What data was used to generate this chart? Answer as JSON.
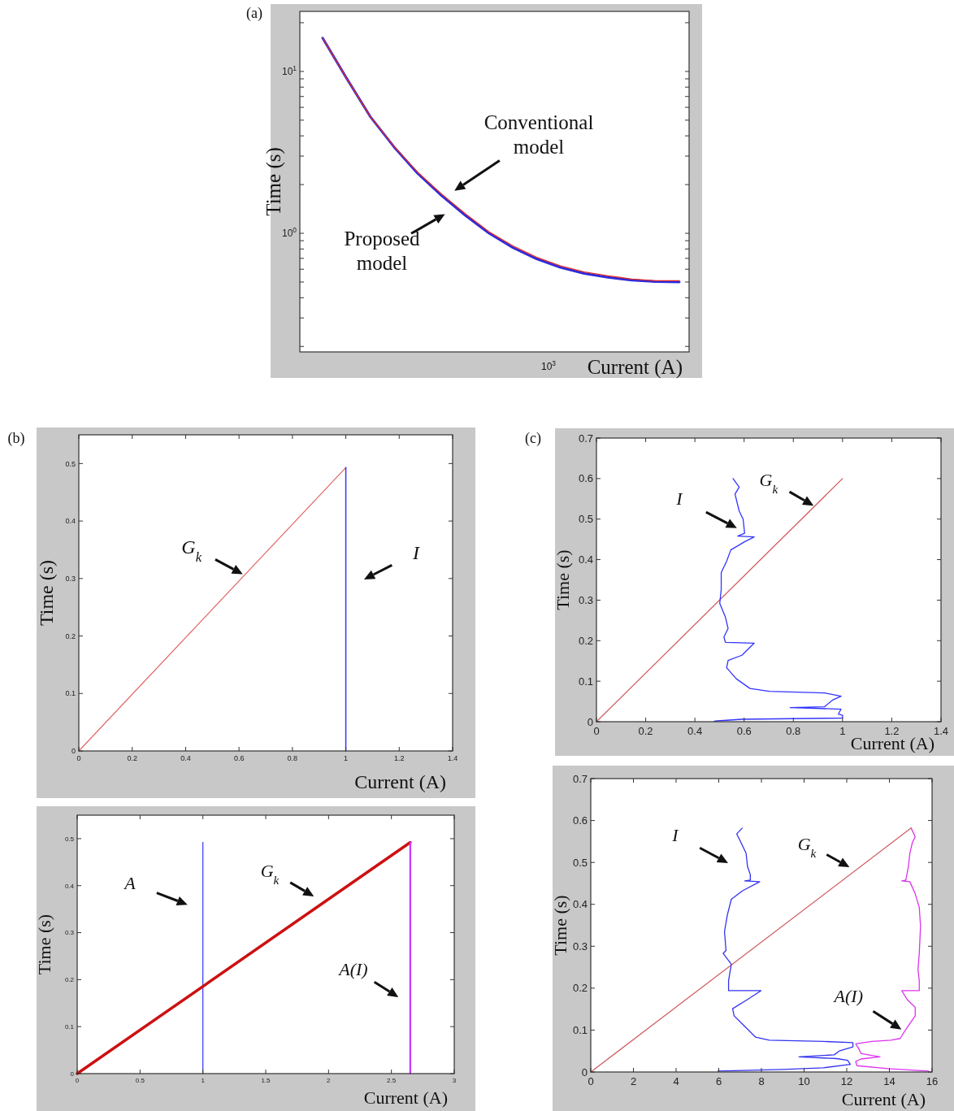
{
  "chart_data": [
    {
      "type": "line",
      "title": "(a)",
      "xlabel": "Current (A)",
      "ylabel": "Time (s)",
      "log": "y",
      "ylim": [
        0.185,
        23.5
      ],
      "categories": [
        null,
        null,
        null,
        null,
        null,
        null,
        null,
        null,
        null,
        null,
        null,
        null,
        null,
        null,
        null,
        null
      ],
      "yticks": [
        {
          "value": 0.2,
          "label": null
        },
        {
          "value": 0.3,
          "label": null
        },
        {
          "value": 0.4,
          "label": null
        },
        {
          "value": 0.5,
          "label": null
        },
        {
          "value": 0.6,
          "label": null
        },
        {
          "value": 0.7,
          "label": null
        },
        {
          "value": 0.8,
          "label": null
        },
        {
          "value": 0.9,
          "label": null
        },
        {
          "value": 1,
          "label": "10$^{0}$"
        },
        {
          "value": 2,
          "label": null
        },
        {
          "value": 3,
          "label": null
        },
        {
          "value": 4,
          "label": null
        },
        {
          "value": 5,
          "label": null
        },
        {
          "value": 6,
          "label": null
        },
        {
          "value": 7,
          "label": null
        },
        {
          "value": 8,
          "label": null
        },
        {
          "value": 9,
          "label": null
        },
        {
          "value": 10,
          "label": "10$^{1}$"
        },
        {
          "value": 20,
          "label": null
        }
      ],
      "series": [
        {
          "color": "#2b2bdd",
          "values": [
            16.1,
            9.12,
            5.27,
            3.42,
            2.34,
            1.71,
            1.29,
            1.0,
            0.815,
            0.695,
            0.615,
            0.565,
            0.535,
            0.513,
            0.503,
            0.5
          ]
        },
        {
          "color": "#dd2b2b",
          "values": [
            16.1,
            9.12,
            5.27,
            3.45,
            2.38,
            1.75,
            1.32,
            1.02,
            0.836,
            0.71,
            0.63,
            0.577,
            0.546,
            0.522,
            0.51,
            0.51
          ]
        }
      ],
      "annotations": [
        "Conventional model",
        "Proposed model",
        "10$^{3}$"
      ]
    },
    {
      "type": "line",
      "title": "(b)",
      "xlabel": "Current (A)",
      "ylabel": "Time (s)",
      "xlim": [
        0,
        1.4
      ],
      "ylim": [
        0,
        0.55
      ],
      "xticks": [
        0,
        0.2,
        0.4,
        0.6,
        0.8,
        1,
        1.2,
        1.4
      ],
      "yticks": [
        0,
        0.1,
        0.2,
        0.3,
        0.4,
        0.5
      ],
      "series": [
        {
          "color": "#e06666",
          "x": [
            0,
            1
          ],
          "values": [
            0,
            0.493
          ]
        },
        {
          "color": "#3333ff",
          "x": [
            1,
            1
          ],
          "values": [
            0,
            0.493
          ]
        }
      ],
      "annotations": [
        {
          "text": "G$_{k}$",
          "x": 0.62,
          "y": 0.306
        },
        "I"
      ]
    },
    {
      "type": "line",
      "xlabel": "Current (A)",
      "ylabel": "Time (s)",
      "xlim": [
        0,
        3
      ],
      "ylim": [
        0,
        0.55
      ],
      "xticks": [
        0,
        0.5,
        1,
        1.5,
        2,
        2.5,
        3
      ],
      "yticks": [
        0,
        0.1,
        0.2,
        0.3,
        0.4,
        0.5
      ],
      "series": [
        {
          "color": "#3333ff",
          "x": [
            1,
            1
          ],
          "values": [
            0,
            0.492
          ]
        },
        {
          "color": "#cc1111",
          "x": [
            0,
            2.65
          ],
          "values": [
            0,
            0.492
          ]
        },
        {
          "color": "#cc33ff",
          "x": [
            2.65,
            2.65
          ],
          "values": [
            0,
            0.492
          ]
        }
      ],
      "annotations": [
        "A",
        "G$_{k}$",
        "A(I)"
      ]
    },
    {
      "type": "line",
      "title": "(c)",
      "xlabel": "Current (A)",
      "ylabel": "Time (s)",
      "xlim": [
        0,
        1.4
      ],
      "ylim": [
        0,
        0.7
      ],
      "xticks": [
        0,
        0.2,
        0.4,
        0.6,
        0.8,
        1,
        1.2,
        1.4
      ],
      "yticks": [
        0,
        0.1,
        0.2,
        0.3,
        0.4,
        0.5,
        0.6,
        0.7
      ],
      "series": [
        {
          "color": "#d06060",
          "x": [
            0,
            1
          ],
          "values": [
            0,
            0.6
          ]
        },
        {
          "color": "#3333ff",
          "x": [
            0.555,
            0.58,
            0.563,
            0.58,
            0.596,
            0.602,
            0.574,
            0.641,
            0.602,
            0.546,
            0.529,
            0.507,
            0.507,
            0.501,
            0.524,
            0.535,
            0.518,
            0.524,
            0.641,
            0.591,
            0.535,
            0.529,
            0.568,
            0.624,
            0.703,
            0.927,
            0.994,
            0.961,
            0.927,
            0.787,
            0.994,
            0.983,
            1.0,
            1.0,
            0.591,
            0.49,
            0.479
          ],
          "values": [
            0.6,
            0.579,
            0.562,
            0.52,
            0.5,
            0.465,
            0.458,
            0.456,
            0.444,
            0.424,
            0.396,
            0.368,
            0.327,
            0.292,
            0.258,
            0.23,
            0.209,
            0.196,
            0.194,
            0.164,
            0.151,
            0.133,
            0.106,
            0.082,
            0.075,
            0.071,
            0.063,
            0.054,
            0.037,
            0.035,
            0.031,
            0.019,
            0.016,
            0.009,
            0.006,
            0.002,
            0.001
          ]
        }
      ],
      "annotations": [
        "I",
        {
          "text": "G$_{k}$",
          "x": 0.888,
          "y": 0.531
        }
      ]
    },
    {
      "type": "line",
      "xlabel": "Current (A)",
      "ylabel": "Time (s)",
      "xlim": [
        0,
        16
      ],
      "ylim": [
        0,
        0.7
      ],
      "xticks": [
        0,
        2,
        4,
        6,
        8,
        10,
        12,
        14,
        16
      ],
      "yticks": [
        0,
        0.1,
        0.2,
        0.3,
        0.4,
        0.5,
        0.6,
        0.7
      ],
      "series": [
        {
          "color": "#d06060",
          "x": [
            0,
            15.02
          ],
          "values": [
            0,
            0.582
          ]
        },
        {
          "color": "#3333ee",
          "x": [
            7.1,
            6.84,
            6.97,
            7.28,
            7.35,
            7.48,
            7.48,
            7.22,
            7.92,
            7.1,
            6.59,
            6.4,
            6.27,
            6.34,
            6.21,
            6.59,
            6.46,
            6.46,
            7.98,
            7.35,
            6.65,
            6.72,
            7.1,
            7.73,
            8.37,
            10.9,
            12.29,
            12.29,
            11.65,
            11.41,
            9.76,
            11.53,
            12.04,
            12.17,
            10.9,
            9.0,
            5.96
          ],
          "values": [
            0.582,
            0.568,
            0.555,
            0.522,
            0.49,
            0.471,
            0.458,
            0.456,
            0.454,
            0.432,
            0.412,
            0.374,
            0.335,
            0.29,
            0.283,
            0.257,
            0.218,
            0.194,
            0.194,
            0.173,
            0.151,
            0.134,
            0.115,
            0.083,
            0.076,
            0.073,
            0.07,
            0.06,
            0.05,
            0.041,
            0.036,
            0.032,
            0.028,
            0.018,
            0.01,
            0.006,
            0.002
          ]
        },
        {
          "color": "#dd33ee",
          "x": [
            15.02,
            15.21,
            15.08,
            14.96,
            14.89,
            14.77,
            14.58,
            14.96,
            15.21,
            15.4,
            15.46,
            15.4,
            15.34,
            15.4,
            15.4,
            14.58,
            14.83,
            15.21,
            15.21,
            14.7,
            14.51,
            14.07,
            13.18,
            12.42,
            12.55,
            12.67,
            13.56,
            12.67,
            12.42,
            12.48,
            13.94,
            15.84
          ],
          "values": [
            0.582,
            0.561,
            0.548,
            0.522,
            0.49,
            0.458,
            0.456,
            0.454,
            0.425,
            0.393,
            0.348,
            0.283,
            0.244,
            0.218,
            0.194,
            0.194,
            0.173,
            0.154,
            0.134,
            0.096,
            0.08,
            0.076,
            0.073,
            0.067,
            0.057,
            0.044,
            0.036,
            0.031,
            0.025,
            0.015,
            0.008,
            0.002
          ]
        }
      ],
      "annotations": [
        "I",
        "G$_{k}$",
        {
          "text": "A(I)",
          "x": 14.64,
          "y": 0.099
        }
      ]
    }
  ]
}
